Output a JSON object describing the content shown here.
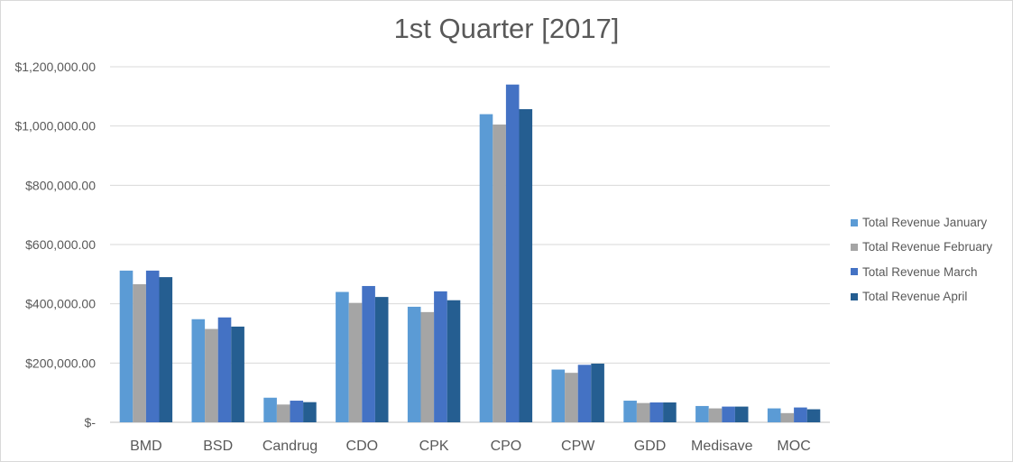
{
  "chart_data": {
    "type": "bar",
    "title": "1st Quarter [2017]",
    "xlabel": "",
    "ylabel": "",
    "ylim": [
      0,
      1200000
    ],
    "y_ticks": [
      {
        "value": 0,
        "label": "$-"
      },
      {
        "value": 200000,
        "label": "$200,000.00"
      },
      {
        "value": 400000,
        "label": "$400,000.00"
      },
      {
        "value": 600000,
        "label": "$600,000.00"
      },
      {
        "value": 800000,
        "label": "$800,000.00"
      },
      {
        "value": 1000000,
        "label": "$1,000,000.00"
      },
      {
        "value": 1200000,
        "label": "$1,200,000.00"
      }
    ],
    "grid": true,
    "legend_position": "right",
    "categories": [
      "BMD",
      "BSD",
      "Candrug",
      "CDO",
      "CPK",
      "CPO",
      "CPW",
      "GDD",
      "Medisave",
      "MOC"
    ],
    "series": [
      {
        "name": "Total Revenue January",
        "color": "#5b9bd5",
        "values": [
          512000,
          348000,
          83000,
          440000,
          390000,
          1040000,
          178000,
          73000,
          55000,
          47000
        ]
      },
      {
        "name": "Total Revenue February",
        "color": "#a5a5a5",
        "values": [
          466000,
          315000,
          60000,
          403000,
          372000,
          1005000,
          167000,
          65000,
          47000,
          31000
        ]
      },
      {
        "name": "Total Revenue March",
        "color": "#4472c4",
        "values": [
          512000,
          354000,
          73000,
          460000,
          442000,
          1140000,
          194000,
          67000,
          53000,
          50000
        ]
      },
      {
        "name": "Total Revenue April",
        "color": "#255e91",
        "values": [
          490000,
          323000,
          68000,
          423000,
          412000,
          1057000,
          198000,
          67000,
          53000,
          44000
        ]
      }
    ]
  }
}
